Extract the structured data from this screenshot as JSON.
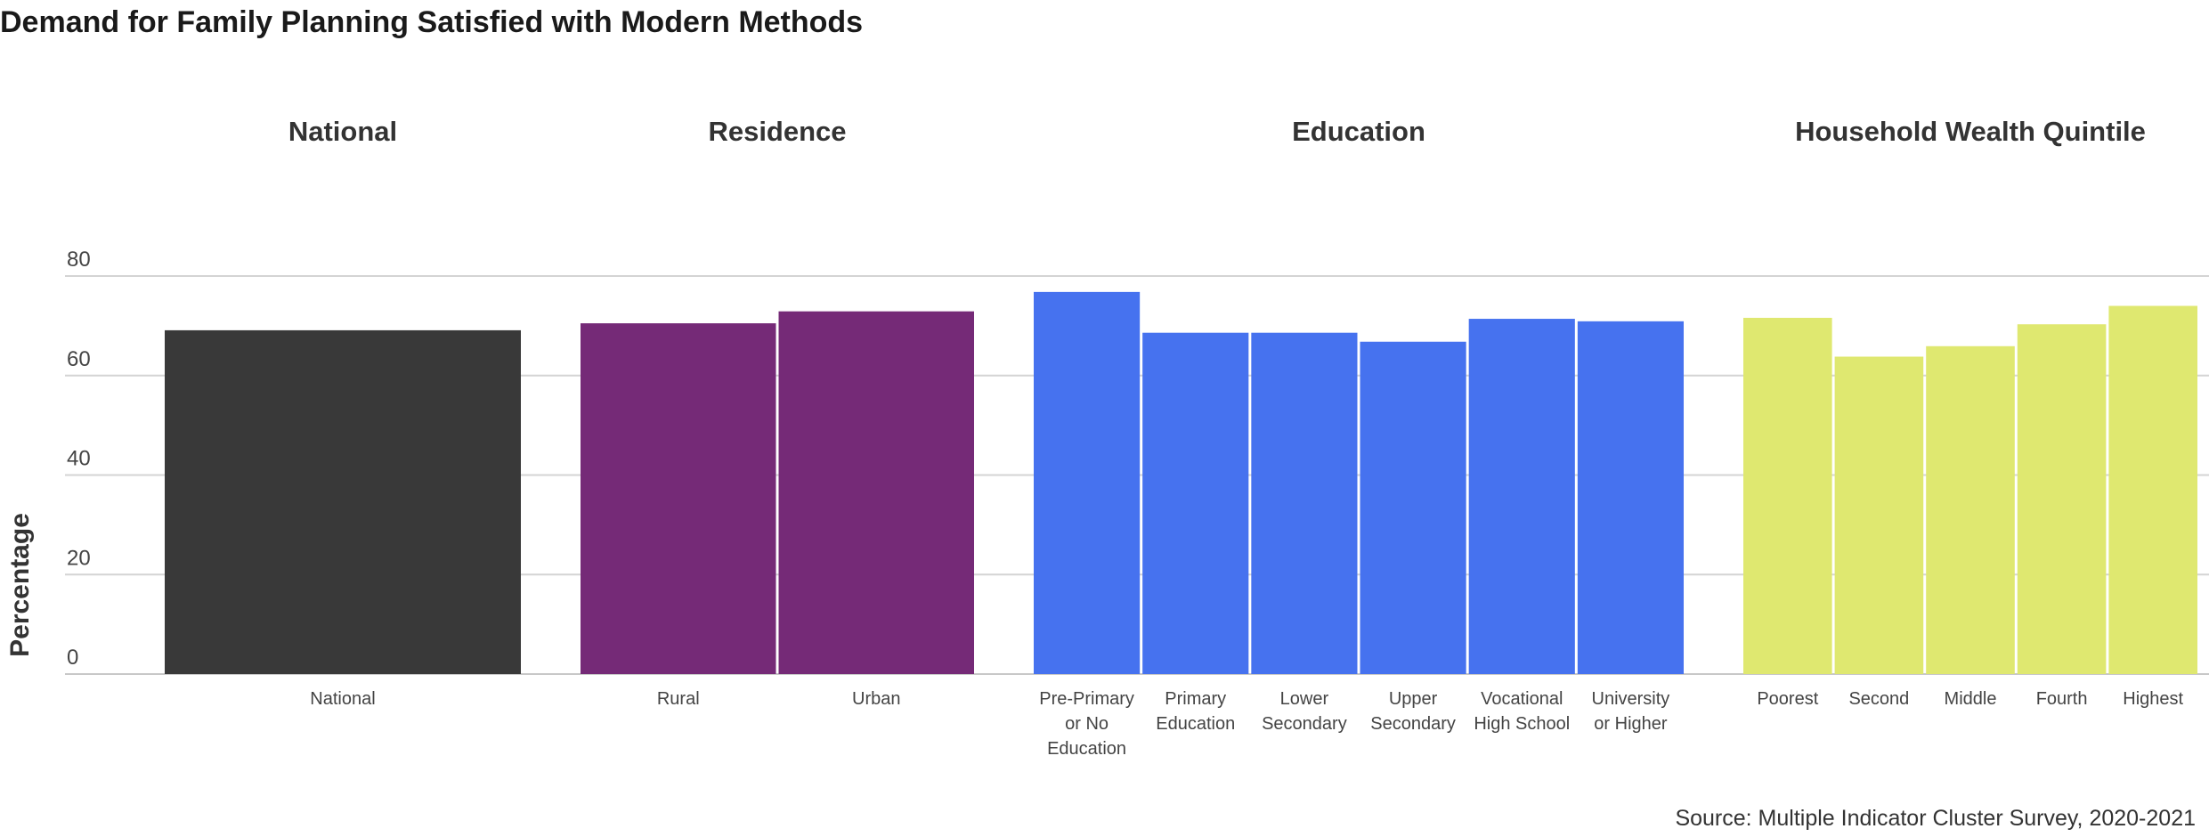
{
  "chart_data": {
    "type": "bar",
    "title": "Demand for Family Planning Satisfied with Modern Methods",
    "ylabel": "Percentage",
    "ylim": [
      0,
      80
    ],
    "yticks": [
      0,
      20,
      40,
      60,
      80
    ],
    "grid": true,
    "source": "Source: Multiple Indicator Cluster Survey, 2020-2021",
    "panels": [
      {
        "name": "National",
        "color": "#393939",
        "categories": [
          [
            "National"
          ]
        ],
        "values": [
          69.1
        ]
      },
      {
        "name": "Residence",
        "color": "#752a77",
        "categories": [
          [
            "Rural"
          ],
          [
            "Urban"
          ]
        ],
        "values": [
          70.5,
          72.9
        ]
      },
      {
        "name": "Education",
        "color": "#4672ef",
        "categories": [
          [
            "Pre-Primary",
            "or No",
            "Education"
          ],
          [
            "Primary",
            "Education"
          ],
          [
            "Lower",
            "Secondary"
          ],
          [
            "Upper",
            "Secondary"
          ],
          [
            "Vocational",
            "High School"
          ],
          [
            "University",
            "or Higher"
          ]
        ],
        "values": [
          76.8,
          68.6,
          68.6,
          66.8,
          71.4,
          70.9
        ]
      },
      {
        "name": "Household Wealth Quintile",
        "color": "#dfe870",
        "categories": [
          [
            "Poorest"
          ],
          [
            "Second"
          ],
          [
            "Middle"
          ],
          [
            "Fourth"
          ],
          [
            "Highest"
          ]
        ],
        "values": [
          71.6,
          63.8,
          65.9,
          70.3,
          74.0
        ]
      }
    ]
  }
}
